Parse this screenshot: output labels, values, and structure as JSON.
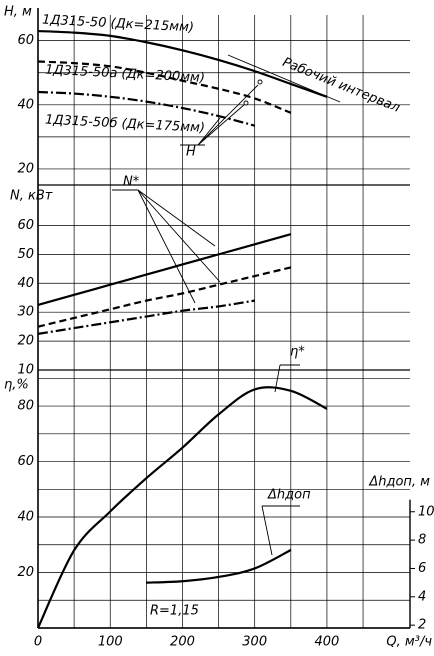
{
  "chart_data": [
    {
      "type": "line",
      "y_label": "H, м",
      "x": [
        0,
        50,
        100,
        150,
        200,
        250,
        300,
        350,
        400
      ],
      "series": [
        {
          "name": "1Д315-50 (Дк=215мм)",
          "color": "#000000",
          "dash": "solid",
          "values": [
            63,
            62.5,
            61.5,
            59.5,
            57,
            54,
            50.5,
            46.5,
            42.5
          ]
        },
        {
          "name": "1Д315-50а (Дк=200мм)",
          "color": "#000000",
          "dash": "dashed",
          "values": [
            53.5,
            53,
            52,
            50,
            47.5,
            45,
            42,
            37.5,
            null
          ]
        },
        {
          "name": "1Д315-50б (Дк=175мм)",
          "color": "#000000",
          "dash": "dashdot",
          "values": [
            44,
            43.5,
            42.5,
            41,
            39,
            36.5,
            33.5,
            null,
            null
          ]
        }
      ],
      "annotations": [
        "Рабочий интервал",
        "H"
      ],
      "xlim": [
        0,
        515
      ],
      "ylim": [
        15,
        68
      ],
      "yticks": [
        20,
        40,
        60
      ],
      "grid": true,
      "minor_grid": true
    },
    {
      "type": "line",
      "y_label": "N, кВт",
      "x": [
        0,
        50,
        100,
        150,
        200,
        250,
        300,
        350,
        400
      ],
      "series": [
        {
          "color": "#000000",
          "dash": "solid",
          "values": [
            32.5,
            36,
            39.5,
            43,
            46.5,
            50,
            53.5,
            57,
            null
          ]
        },
        {
          "color": "#000000",
          "dash": "dashed",
          "values": [
            25,
            28,
            31,
            34,
            36.5,
            39.5,
            42.5,
            45.5,
            null
          ]
        },
        {
          "color": "#000000",
          "dash": "dashdot",
          "values": [
            22.5,
            24.5,
            26.5,
            28.5,
            30.5,
            32,
            34,
            null,
            null
          ]
        }
      ],
      "annotations": [
        "N*"
      ],
      "xlim": [
        0,
        515
      ],
      "ylim": [
        10,
        74
      ],
      "yticks": [
        10,
        20,
        30,
        40,
        50,
        60
      ],
      "grid": true,
      "minor_grid": false
    },
    {
      "type": "line",
      "y_label": "η,%",
      "x_label": "Q, м³/ч",
      "y2_label": "Δhдоп, м",
      "x": [
        0,
        50,
        100,
        150,
        200,
        250,
        300,
        350,
        400
      ],
      "series": [
        {
          "color": "#000000",
          "dash": "solid",
          "values": [
            0,
            28,
            42,
            54,
            65,
            77,
            86,
            85.5,
            79
          ]
        },
        {
          "color": "#000000",
          "dash": "solid",
          "axis": "y2",
          "values": [
            null,
            null,
            null,
            5.0,
            5.1,
            5.4,
            6.0,
            7.3,
            null
          ]
        }
      ],
      "annotations": [
        "η*",
        "Δhдоп",
        "R=1,15"
      ],
      "xlim": [
        0,
        515
      ],
      "xticks": [
        0,
        100,
        200,
        300,
        400
      ],
      "ylim": [
        0,
        93
      ],
      "yticks": [
        20,
        40,
        60,
        80
      ],
      "y2lim": [
        1.8,
        20
      ],
      "y2ticks": [
        2,
        4,
        6,
        8,
        10
      ],
      "grid": true,
      "minor_grid": true
    }
  ]
}
